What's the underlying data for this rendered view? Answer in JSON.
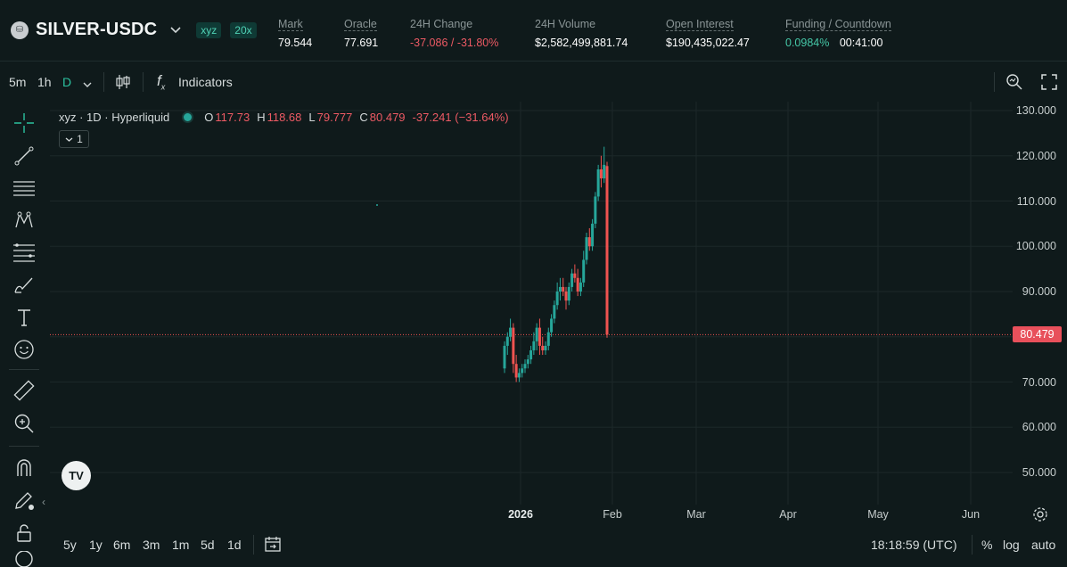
{
  "header": {
    "asset_name": "SILVER-USDC",
    "badges": [
      "xyz",
      "20x"
    ],
    "stats": [
      {
        "label": "Mark",
        "value": "79.544",
        "color": "default"
      },
      {
        "label": "Oracle",
        "value": "77.691",
        "color": "default"
      },
      {
        "label": "24H Change",
        "value": "-37.086 / -31.80%",
        "color": "red"
      },
      {
        "label": "24H Volume",
        "value": "$2,582,499,881.74",
        "color": "default"
      },
      {
        "label": "Open Interest",
        "value": "$190,435,022.47",
        "color": "default"
      },
      {
        "label": "Funding / Countdown",
        "value": "0.0984%",
        "value2": "00:41:00",
        "color": "green"
      }
    ]
  },
  "toolbar": {
    "intervals": [
      "5m",
      "1h",
      "D"
    ],
    "active_interval": "D",
    "indicators_label": "Indicators"
  },
  "legend": {
    "symbol": "xyz · 1D · Hyperliquid",
    "o_label": "O",
    "o_value": "117.73",
    "h_label": "H",
    "h_value": "118.68",
    "l_label": "L",
    "l_value": "79.777",
    "c_label": "C",
    "c_value": "80.479",
    "change": "-37.241 (−31.64%)",
    "collapse_count": "1"
  },
  "chart_data": {
    "type": "candlestick",
    "ylim": [
      45,
      132
    ],
    "yticks": [
      "130.000",
      "120.000",
      "110.000",
      "100.000",
      "90.000",
      "80.000",
      "70.000",
      "60.000",
      "50.000"
    ],
    "ytick_values": [
      130,
      120,
      110,
      100,
      90,
      80,
      70,
      60,
      50
    ],
    "xticks": [
      {
        "label": "2026",
        "bold": true
      },
      {
        "label": "Feb",
        "bold": false
      },
      {
        "label": "Mar",
        "bold": false
      },
      {
        "label": "Apr",
        "bold": false
      },
      {
        "label": "May",
        "bold": false
      },
      {
        "label": "Jun",
        "bold": false
      }
    ],
    "last_price": "80.479",
    "last_price_value": 80.479,
    "candles": [
      [
        73,
        79,
        72,
        78
      ],
      [
        78,
        81,
        76,
        80
      ],
      [
        80,
        84,
        79,
        82
      ],
      [
        82,
        83,
        72,
        74
      ],
      [
        74,
        76,
        70,
        71
      ],
      [
        71,
        73,
        70,
        72
      ],
      [
        72,
        74,
        71,
        73
      ],
      [
        73,
        75,
        72,
        74
      ],
      [
        74,
        76,
        73,
        75
      ],
      [
        75,
        78,
        74,
        77
      ],
      [
        77,
        81,
        76,
        79
      ],
      [
        79,
        83,
        77,
        82
      ],
      [
        82,
        84,
        76,
        78
      ],
      [
        78,
        80,
        76,
        77
      ],
      [
        77,
        79,
        76,
        78
      ],
      [
        78,
        82,
        77,
        81
      ],
      [
        81,
        85,
        80,
        84
      ],
      [
        84,
        88,
        83,
        87
      ],
      [
        87,
        92,
        86,
        90
      ],
      [
        90,
        93,
        88,
        91
      ],
      [
        91,
        93,
        89,
        90
      ],
      [
        90,
        91,
        86,
        88
      ],
      [
        88,
        92,
        87,
        91
      ],
      [
        91,
        95,
        90,
        94
      ],
      [
        94,
        96,
        92,
        93
      ],
      [
        93,
        95,
        89,
        90
      ],
      [
        90,
        93,
        89,
        92
      ],
      [
        92,
        99,
        91,
        97
      ],
      [
        97,
        103,
        96,
        102
      ],
      [
        102,
        104,
        99,
        100
      ],
      [
        100,
        106,
        99,
        105
      ],
      [
        105,
        112,
        104,
        111
      ],
      [
        111,
        118,
        110,
        117
      ],
      [
        117,
        120,
        113,
        115
      ],
      [
        115,
        122,
        114,
        118
      ],
      [
        117.73,
        118.68,
        79.777,
        80.479
      ]
    ],
    "colors": {
      "up": "#26a69a",
      "down": "#ef5350",
      "grid": "#1c2829",
      "price_line": "#ef5350"
    }
  },
  "bottom_bar": {
    "ranges": [
      "5y",
      "1y",
      "6m",
      "3m",
      "1m",
      "5d",
      "1d"
    ],
    "clock": "18:18:59 (UTC)",
    "percent_label": "%",
    "log_label": "log",
    "auto_label": "auto"
  }
}
